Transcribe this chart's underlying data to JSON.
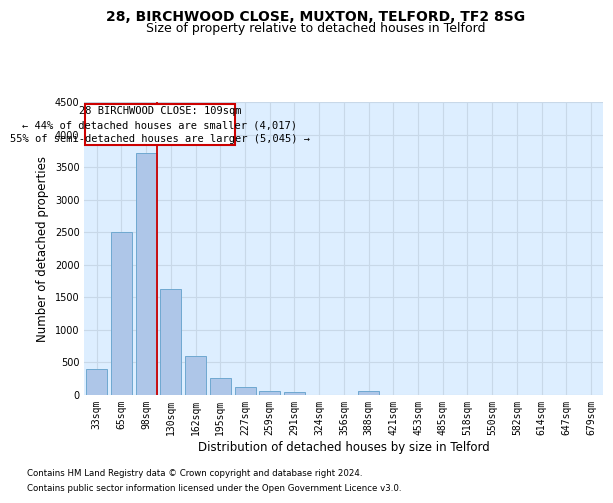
{
  "title1": "28, BIRCHWOOD CLOSE, MUXTON, TELFORD, TF2 8SG",
  "title2": "Size of property relative to detached houses in Telford",
  "xlabel": "Distribution of detached houses by size in Telford",
  "ylabel": "Number of detached properties",
  "footnote1": "Contains HM Land Registry data © Crown copyright and database right 2024.",
  "footnote2": "Contains public sector information licensed under the Open Government Licence v3.0.",
  "annotation_line1": "28 BIRCHWOOD CLOSE: 109sqm",
  "annotation_line2": "← 44% of detached houses are smaller (4,017)",
  "annotation_line3": "55% of semi-detached houses are larger (5,045) →",
  "bar_categories": [
    "33sqm",
    "65sqm",
    "98sqm",
    "130sqm",
    "162sqm",
    "195sqm",
    "227sqm",
    "259sqm",
    "291sqm",
    "324sqm",
    "356sqm",
    "388sqm",
    "421sqm",
    "453sqm",
    "485sqm",
    "518sqm",
    "550sqm",
    "582sqm",
    "614sqm",
    "647sqm",
    "679sqm"
  ],
  "bar_values": [
    390,
    2500,
    3720,
    1620,
    590,
    250,
    115,
    55,
    40,
    0,
    0,
    60,
    0,
    0,
    0,
    0,
    0,
    0,
    0,
    0,
    0
  ],
  "bar_color": "#aec6e8",
  "bar_edge_color": "#6fa8d0",
  "vline_color": "#cc0000",
  "ylim": [
    0,
    4500
  ],
  "yticks": [
    0,
    500,
    1000,
    1500,
    2000,
    2500,
    3000,
    3500,
    4000,
    4500
  ],
  "grid_color": "#c8d8e8",
  "bg_color": "#ddeeff",
  "annotation_box_color": "#cc0000",
  "title1_fontsize": 10,
  "title2_fontsize": 9,
  "tick_fontsize": 7,
  "ylabel_fontsize": 8.5,
  "xlabel_fontsize": 8.5,
  "annot_fontsize": 7.5
}
